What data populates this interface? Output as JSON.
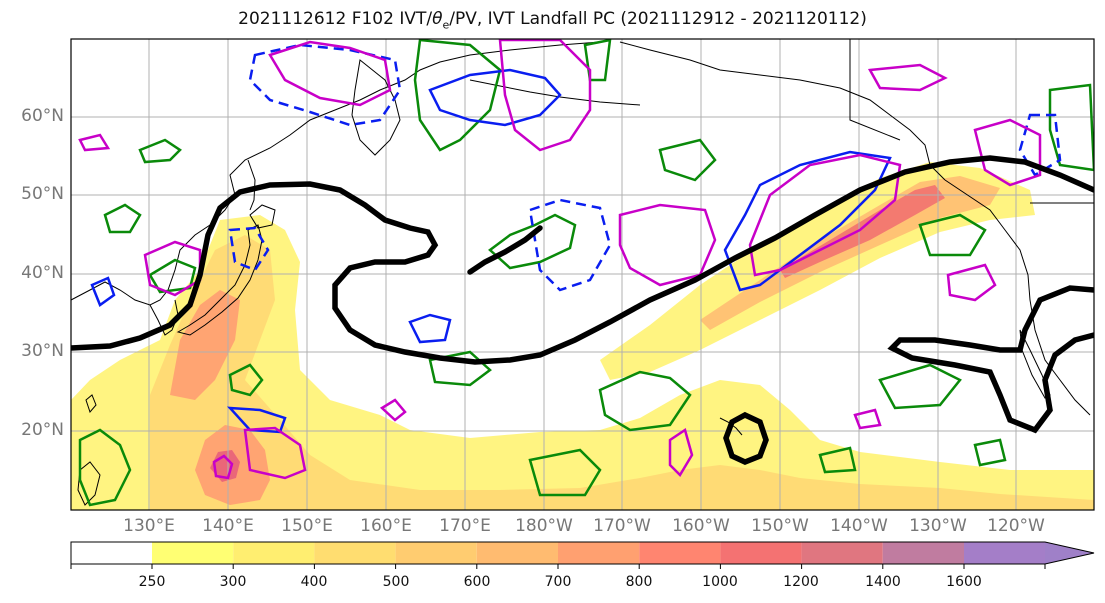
{
  "title_main": "2021112612 F102 IVT/",
  "title_sym": "θ",
  "title_sub": "e",
  "title_rest": "/PV, IVT Landfall PC (2021112912 - 2021120112)",
  "lat_labels": [
    "60°N",
    "50°N",
    "40°N",
    "30°N",
    "20°N"
  ],
  "lon_labels": [
    "130°E",
    "140°E",
    "150°E",
    "160°E",
    "170°E",
    "180°W",
    "170°W",
    "160°W",
    "150°W",
    "140°W",
    "130°W",
    "120°W"
  ],
  "colorbar": {
    "ticks": [
      "250",
      "300",
      "400",
      "500",
      "600",
      "700",
      "800",
      "1000",
      "1200",
      "1400",
      "1600"
    ],
    "colors": [
      "#ffff73",
      "#ffee70",
      "#ffdd70",
      "#ffcc70",
      "#ffbb70",
      "#ffa070",
      "#ff8570",
      "#f47272",
      "#e07680",
      "#c07ca0",
      "#a47ec8"
    ],
    "extend_color": "#9f80c8"
  },
  "colors": {
    "ivt_light": "#fff37a",
    "ivt_mid": "#ffc973",
    "ivt_high": "#ff9270",
    "ivt_peak": "#ef6a6a",
    "theta_contour": "#000000",
    "pv_green": "#0a8a0a",
    "pv_blue": "#0a1ef0",
    "pv_magenta": "#c800c8",
    "coast": "#000000",
    "grid": "#b0b0b0",
    "axis_label": "#777777"
  }
}
